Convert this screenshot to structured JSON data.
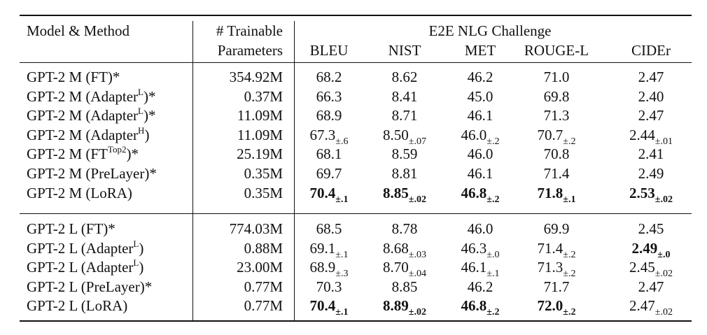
{
  "table": {
    "header": {
      "model": "Model & Method",
      "params": [
        "# Trainable",
        "Parameters"
      ],
      "group": "E2E NLG Challenge",
      "metrics": [
        "BLEU",
        "NIST",
        "MET",
        "ROUGE-L",
        "CIDEr"
      ]
    },
    "sections": [
      {
        "rows": [
          {
            "model": {
              "text": "GPT-2 M (FT)*"
            },
            "params": "354.92M",
            "cells": [
              {
                "v": "68.2"
              },
              {
                "v": "8.62"
              },
              {
                "v": "46.2"
              },
              {
                "v": "71.0"
              },
              {
                "v": "2.47"
              }
            ]
          },
          {
            "model": {
              "text": "GPT-2 M (Adapter",
              "sup": "L",
              "tail": ")*"
            },
            "params": "0.37M",
            "cells": [
              {
                "v": "66.3"
              },
              {
                "v": "8.41"
              },
              {
                "v": "45.0"
              },
              {
                "v": "69.8"
              },
              {
                "v": "2.40"
              }
            ]
          },
          {
            "model": {
              "text": "GPT-2 M (Adapter",
              "sup": "L",
              "tail": ")*"
            },
            "params": "11.09M",
            "cells": [
              {
                "v": "68.9"
              },
              {
                "v": "8.71"
              },
              {
                "v": "46.1"
              },
              {
                "v": "71.3"
              },
              {
                "v": "2.47"
              }
            ]
          },
          {
            "model": {
              "text": "GPT-2 M (Adapter",
              "sup": "H",
              "tail": ")"
            },
            "params": "11.09M",
            "cells": [
              {
                "v": "67.3",
                "sub": "±.6"
              },
              {
                "v": "8.50",
                "sub": "±.07"
              },
              {
                "v": "46.0",
                "sub": "±.2"
              },
              {
                "v": "70.7",
                "sub": "±.2"
              },
              {
                "v": "2.44",
                "sub": "±.01"
              }
            ]
          },
          {
            "model": {
              "text": "GPT-2 M (FT",
              "sup": "Top2",
              "tail": ")*"
            },
            "params": "25.19M",
            "cells": [
              {
                "v": "68.1"
              },
              {
                "v": "8.59"
              },
              {
                "v": "46.0"
              },
              {
                "v": "70.8"
              },
              {
                "v": "2.41"
              }
            ]
          },
          {
            "model": {
              "text": "GPT-2 M (PreLayer)*"
            },
            "params": "0.35M",
            "cells": [
              {
                "v": "69.7"
              },
              {
                "v": "8.81"
              },
              {
                "v": "46.1"
              },
              {
                "v": "71.4"
              },
              {
                "v": "2.49"
              }
            ]
          },
          {
            "model": {
              "text": "GPT-2 M (LoRA)"
            },
            "params": "0.35M",
            "cells": [
              {
                "v": "70.4",
                "sub": "±.1",
                "bold": true
              },
              {
                "v": "8.85",
                "sub": "±.02",
                "bold": true
              },
              {
                "v": "46.8",
                "sub": "±.2",
                "bold": true
              },
              {
                "v": "71.8",
                "sub": "±.1",
                "bold": true
              },
              {
                "v": "2.53",
                "sub": "±.02",
                "bold": true
              }
            ]
          }
        ]
      },
      {
        "rows": [
          {
            "model": {
              "text": "GPT-2 L (FT)*"
            },
            "params": "774.03M",
            "cells": [
              {
                "v": "68.5"
              },
              {
                "v": "8.78"
              },
              {
                "v": "46.0"
              },
              {
                "v": "69.9"
              },
              {
                "v": "2.45"
              }
            ]
          },
          {
            "model": {
              "text": "GPT-2 L (Adapter",
              "sup": "L",
              "tail": ")"
            },
            "params": "0.88M",
            "cells": [
              {
                "v": "69.1",
                "sub": "±.1"
              },
              {
                "v": "8.68",
                "sub": "±.03"
              },
              {
                "v": "46.3",
                "sub": "±.0"
              },
              {
                "v": "71.4",
                "sub": "±.2"
              },
              {
                "v": "2.49",
                "sub": "±.0",
                "bold": true
              }
            ]
          },
          {
            "model": {
              "text": "GPT-2 L (Adapter",
              "sup": "L",
              "tail": ")"
            },
            "params": "23.00M",
            "cells": [
              {
                "v": "68.9",
                "sub": "±.3"
              },
              {
                "v": "8.70",
                "sub": "±.04"
              },
              {
                "v": "46.1",
                "sub": "±.1"
              },
              {
                "v": "71.3",
                "sub": "±.2"
              },
              {
                "v": "2.45",
                "sub": "±.02"
              }
            ]
          },
          {
            "model": {
              "text": "GPT-2 L (PreLayer)*"
            },
            "params": "0.77M",
            "cells": [
              {
                "v": "70.3"
              },
              {
                "v": "8.85"
              },
              {
                "v": "46.2"
              },
              {
                "v": "71.7"
              },
              {
                "v": "2.47"
              }
            ]
          },
          {
            "model": {
              "text": "GPT-2 L (LoRA)"
            },
            "params": "0.77M",
            "cells": [
              {
                "v": "70.4",
                "sub": "±.1",
                "bold": true
              },
              {
                "v": "8.89",
                "sub": "±.02",
                "bold": true
              },
              {
                "v": "46.8",
                "sub": "±.2",
                "bold": true
              },
              {
                "v": "72.0",
                "sub": "±.2",
                "bold": true
              },
              {
                "v": "2.47",
                "sub": "±.02"
              }
            ]
          }
        ]
      }
    ]
  }
}
